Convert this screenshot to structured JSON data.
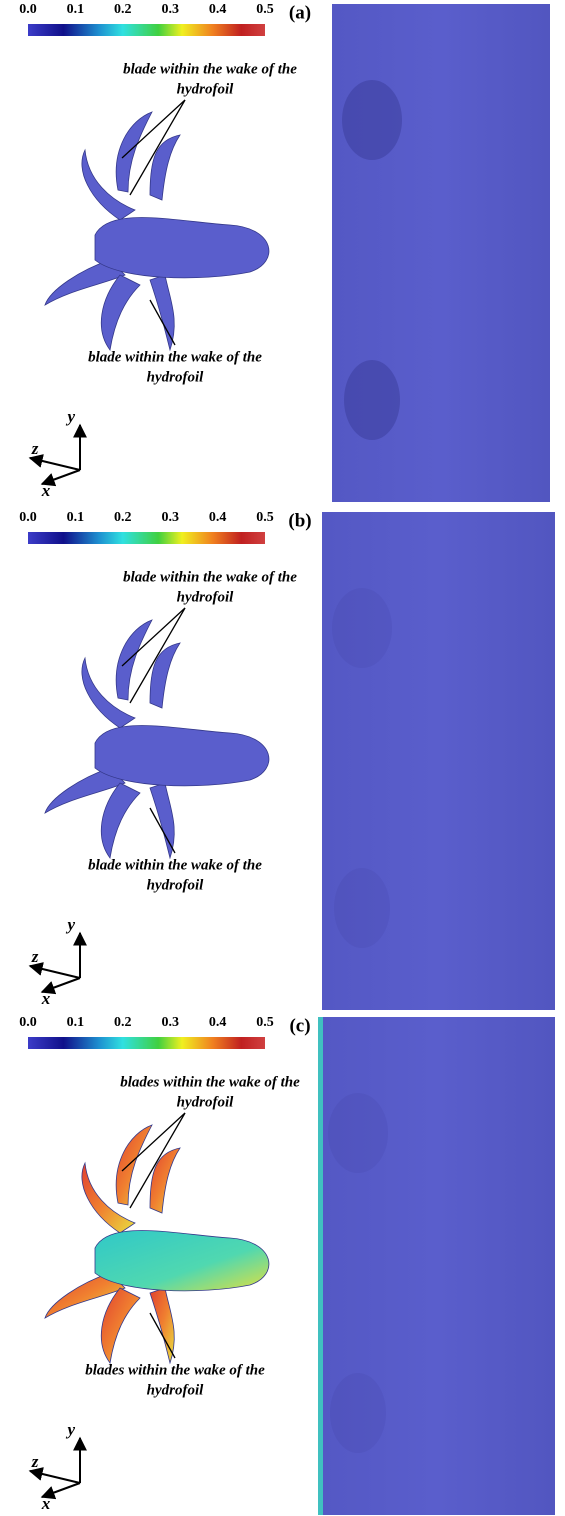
{
  "panels": [
    {
      "label": "(a)",
      "colorbar_ticks": [
        "0.0",
        "0.1",
        "0.2",
        "0.3",
        "0.4",
        "0.5"
      ],
      "annotation_top": [
        "blade within the wake of the",
        "hydrofoil"
      ],
      "annotation_bottom": [
        "blade within the wake of the",
        "hydrofoil"
      ],
      "axes": {
        "y": "y",
        "z": "z",
        "x": "x"
      }
    },
    {
      "label": "(b)",
      "colorbar_ticks": [
        "0.0",
        "0.1",
        "0.2",
        "0.3",
        "0.4",
        "0.5"
      ],
      "annotation_top": [
        "blade within the wake of the",
        "hydrofoil"
      ],
      "annotation_bottom": [
        "blade within the wake of the",
        "hydrofoil"
      ],
      "axes": {
        "y": "y",
        "z": "z",
        "x": "x"
      }
    },
    {
      "label": "(c)",
      "colorbar_ticks": [
        "0.0",
        "0.1",
        "0.2",
        "0.3",
        "0.4",
        "0.5"
      ],
      "annotation_top": [
        "blades within the wake of the",
        "hydrofoil"
      ],
      "annotation_bottom": [
        "blades within the wake of the",
        "hydrofoil"
      ],
      "axes": {
        "y": "y",
        "z": "z",
        "x": "x"
      }
    }
  ]
}
